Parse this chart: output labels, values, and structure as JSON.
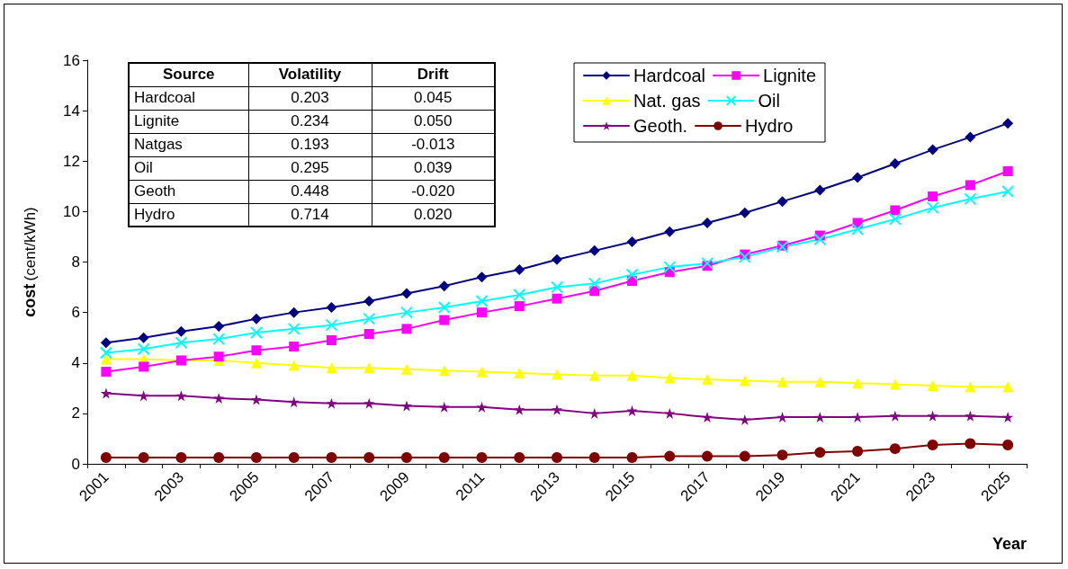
{
  "chart_data": {
    "type": "line",
    "xlabel": "Year",
    "ylabel": "cost (cent/kWh)",
    "categories": [
      "2001",
      null,
      "2003",
      null,
      "2005",
      null,
      "2007",
      null,
      "2009",
      null,
      "2011",
      null,
      "2013",
      null,
      "2015",
      null,
      "2017",
      null,
      "2019",
      null,
      "2021",
      null,
      "2023",
      null,
      "2025"
    ],
    "ylim": [
      0,
      16
    ],
    "yticks": [
      0,
      2,
      4,
      6,
      8,
      10,
      12,
      14,
      16
    ],
    "grid": false,
    "legend": "top right",
    "series": [
      {
        "name": "Hardcoal",
        "color": "#000080",
        "marker": "diamond",
        "values": [
          4.8,
          5.0,
          5.25,
          5.45,
          5.75,
          6.0,
          6.2,
          6.45,
          6.75,
          7.05,
          7.4,
          7.7,
          8.1,
          8.45,
          8.8,
          9.2,
          9.55,
          9.95,
          10.4,
          10.85,
          11.35,
          11.9,
          12.45,
          12.95,
          13.5
        ]
      },
      {
        "name": "Lignite",
        "color": "#ff00ff",
        "marker": "square",
        "values": [
          3.65,
          3.85,
          4.1,
          4.25,
          4.5,
          4.65,
          4.9,
          5.15,
          5.35,
          5.7,
          6.0,
          6.25,
          6.55,
          6.85,
          7.25,
          7.6,
          7.85,
          8.3,
          8.65,
          9.05,
          9.55,
          10.05,
          10.6,
          11.05,
          11.6
        ]
      },
      {
        "name": "Nat. gas",
        "color": "#ffff00",
        "marker": "triangle",
        "values": [
          4.15,
          4.15,
          4.1,
          4.1,
          4.0,
          3.9,
          3.8,
          3.8,
          3.75,
          3.7,
          3.65,
          3.6,
          3.55,
          3.5,
          3.5,
          3.4,
          3.35,
          3.3,
          3.25,
          3.25,
          3.2,
          3.15,
          3.1,
          3.05,
          3.05
        ]
      },
      {
        "name": "Oil",
        "color": "#00ffff",
        "marker": "cross",
        "values": [
          4.4,
          4.55,
          4.8,
          4.95,
          5.2,
          5.35,
          5.5,
          5.75,
          6.0,
          6.2,
          6.45,
          6.7,
          7.0,
          7.15,
          7.5,
          7.8,
          7.95,
          8.2,
          8.6,
          8.9,
          9.3,
          9.7,
          10.15,
          10.5,
          10.8
        ]
      },
      {
        "name": "Geoth.",
        "color": "#800080",
        "marker": "star",
        "values": [
          2.8,
          2.7,
          2.7,
          2.6,
          2.55,
          2.45,
          2.4,
          2.4,
          2.3,
          2.25,
          2.25,
          2.15,
          2.15,
          2.0,
          2.1,
          2.0,
          1.85,
          1.75,
          1.85,
          1.85,
          1.85,
          1.9,
          1.9,
          1.9,
          1.85
        ]
      },
      {
        "name": "Hydro",
        "color": "#800000",
        "marker": "circle",
        "values": [
          0.25,
          0.25,
          0.25,
          0.25,
          0.25,
          0.25,
          0.25,
          0.25,
          0.25,
          0.25,
          0.25,
          0.25,
          0.25,
          0.25,
          0.25,
          0.3,
          0.3,
          0.3,
          0.35,
          0.45,
          0.5,
          0.6,
          0.75,
          0.8,
          0.75
        ]
      }
    ],
    "annotations": [
      "Source",
      "Volatility",
      "Drift",
      "Hardcoal",
      "0.203",
      "0.045",
      "Lignite",
      "0.234",
      "0.050",
      "Natgas",
      "0.193",
      "-0.013",
      "Oil",
      "0.295",
      "0.039",
      "Geoth",
      "0.448",
      "-0.020",
      "Hydro",
      "0.714",
      "0.020"
    ]
  }
}
